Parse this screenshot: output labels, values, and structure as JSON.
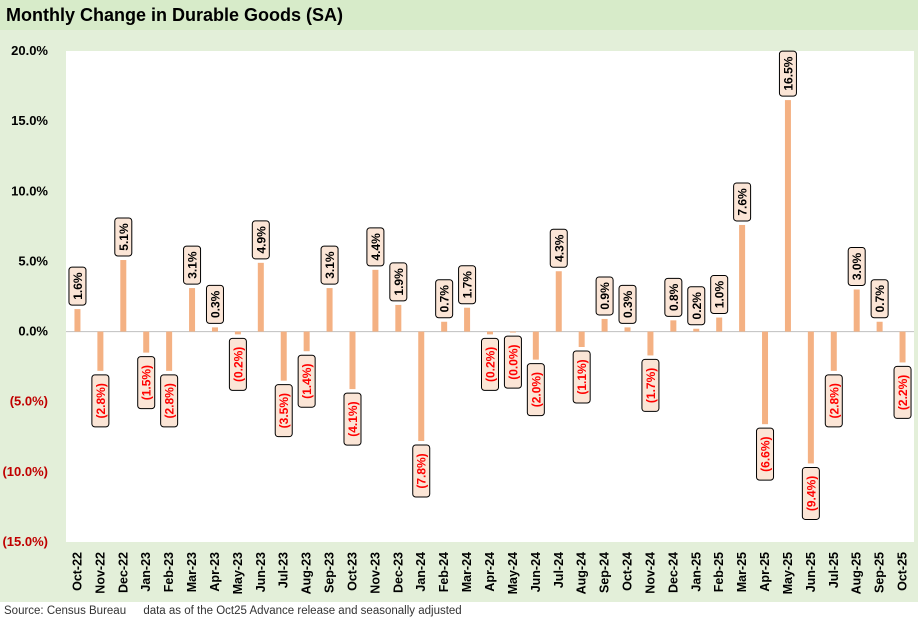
{
  "title": "Monthly Change in Durable Goods (SA)",
  "footer": {
    "source": "Source: Census Bureau",
    "note": "data as of the Oct25 Advance release and seasonally adjusted"
  },
  "colors": {
    "bar": "#f4b183",
    "label_bg": "#fbe5d6",
    "negative_text": "#ff0000",
    "positive_text": "#000000",
    "header_bg": "#d7ebc9"
  },
  "chart_data": {
    "type": "bar",
    "title": "Monthly Change in Durable Goods (SA)",
    "xlabel": "",
    "ylabel": "",
    "ylim": [
      -15,
      20
    ],
    "yticks": [
      20,
      15,
      10,
      5,
      0,
      -5,
      -10,
      -15
    ],
    "ytick_labels": [
      "20.0%",
      "15.0%",
      "10.0%",
      "5.0%",
      "0.0%",
      "(5.0%)",
      "(10.0%)",
      "(15.0%)"
    ],
    "grid": false,
    "categories": [
      "Oct-22",
      "Nov-22",
      "Dec-22",
      "Jan-23",
      "Feb-23",
      "Mar-23",
      "Apr-23",
      "May-23",
      "Jun-23",
      "Jul-23",
      "Aug-23",
      "Sep-23",
      "Oct-23",
      "Nov-23",
      "Dec-23",
      "Jan-24",
      "Feb-24",
      "Mar-24",
      "Apr-24",
      "May-24",
      "Jun-24",
      "Jul-24",
      "Aug-24",
      "Sep-24",
      "Oct-24",
      "Nov-24",
      "Dec-24",
      "Jan-25",
      "Feb-25",
      "Mar-25",
      "Apr-25",
      "May-25",
      "Jun-25",
      "Jul-25",
      "Aug-25",
      "Sep-25",
      "Oct-25"
    ],
    "values": [
      1.6,
      -2.8,
      5.1,
      -1.5,
      -2.8,
      3.1,
      0.3,
      -0.2,
      4.9,
      -3.5,
      -1.4,
      3.1,
      -4.1,
      4.4,
      1.9,
      -7.8,
      0.7,
      1.7,
      -0.2,
      -0.04,
      -2.0,
      4.3,
      -1.1,
      0.9,
      0.3,
      -1.7,
      0.8,
      0.2,
      1.0,
      7.6,
      -6.6,
      16.5,
      -9.4,
      -2.8,
      3.0,
      0.7,
      -2.2
    ],
    "data_labels": [
      "1.6%",
      "(2.8%)",
      "5.1%",
      "(1.5%)",
      "(2.8%)",
      "3.1%",
      "0.3%",
      "(0.2%)",
      "4.9%",
      "(3.5%)",
      "(1.4%)",
      "3.1%",
      "(4.1%)",
      "4.4%",
      "1.9%",
      "(7.8%)",
      "0.7%",
      "1.7%",
      "(0.2%)",
      "(0.0%)",
      "(2.0%)",
      "4.3%",
      "(1.1%)",
      "0.9%",
      "0.3%",
      "(1.7%)",
      "0.8%",
      "0.2%",
      "1.0%",
      "7.6%",
      "(6.6%)",
      "16.5%",
      "(9.4%)",
      "(2.8%)",
      "3.0%",
      "0.7%",
      "(2.2%)"
    ]
  }
}
